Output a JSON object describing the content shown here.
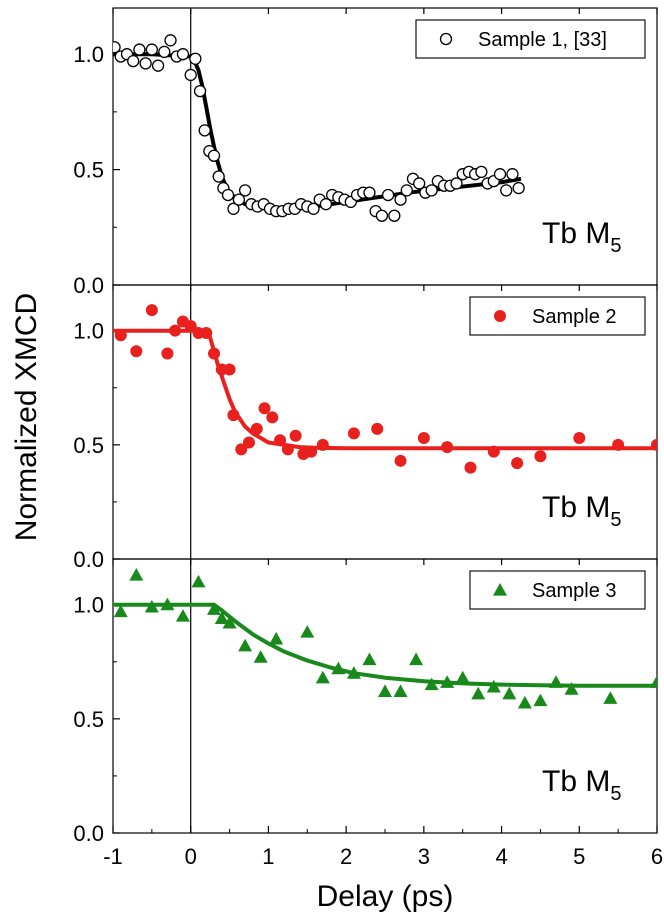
{
  "chart_data": {
    "type": "scatter",
    "xlabel": "Delay (ps)",
    "ylabel": "Normalized XMCD",
    "xlim": [
      -1,
      6
    ],
    "x_ticks": [
      -1,
      0,
      1,
      2,
      3,
      4,
      5,
      6
    ],
    "x_tick_labels": [
      "-1",
      "0",
      "1",
      "2",
      "3",
      "4",
      "5",
      "6"
    ],
    "vertical_line_x": 0,
    "panels": [
      {
        "ylim": [
          0,
          1.2
        ],
        "y_ticks": [
          0,
          0.5,
          1.0
        ],
        "y_tick_labels": [
          "0.0",
          "0.5",
          "1.0"
        ],
        "legend": "Sample 1, [33]",
        "legend_position": "top-right",
        "annotation_main": "Tb M",
        "annotation_sub": "5",
        "color": "#000000",
        "marker": "open-circle",
        "points": {
          "x": [
            -0.98,
            -0.9,
            -0.82,
            -0.74,
            -0.66,
            -0.58,
            -0.5,
            -0.42,
            -0.34,
            -0.26,
            -0.18,
            -0.1,
            0.0,
            0.06,
            0.12,
            0.18,
            0.24,
            0.3,
            0.36,
            0.42,
            0.48,
            0.55,
            0.62,
            0.7,
            0.78,
            0.86,
            0.94,
            1.02,
            1.1,
            1.18,
            1.26,
            1.34,
            1.42,
            1.5,
            1.58,
            1.66,
            1.74,
            1.82,
            1.9,
            1.98,
            2.06,
            2.14,
            2.22,
            2.3,
            2.38,
            2.46,
            2.54,
            2.62,
            2.7,
            2.78,
            2.86,
            2.94,
            3.02,
            3.1,
            3.18,
            3.26,
            3.34,
            3.42,
            3.5,
            3.58,
            3.66,
            3.74,
            3.82,
            3.9,
            3.98,
            4.06,
            4.14,
            4.22
          ],
          "y": [
            1.03,
            0.99,
            1.0,
            0.97,
            1.02,
            0.96,
            1.02,
            0.95,
            1.01,
            1.06,
            0.99,
            1.0,
            0.91,
            0.98,
            0.84,
            0.67,
            0.58,
            0.56,
            0.47,
            0.42,
            0.39,
            0.33,
            0.37,
            0.41,
            0.35,
            0.34,
            0.35,
            0.33,
            0.32,
            0.32,
            0.33,
            0.33,
            0.35,
            0.34,
            0.33,
            0.37,
            0.35,
            0.39,
            0.38,
            0.37,
            0.36,
            0.39,
            0.4,
            0.4,
            0.32,
            0.3,
            0.39,
            0.3,
            0.37,
            0.41,
            0.46,
            0.44,
            0.4,
            0.41,
            0.45,
            0.43,
            0.43,
            0.44,
            0.48,
            0.49,
            0.48,
            0.49,
            0.44,
            0.45,
            0.48,
            0.41,
            0.48,
            0.42
          ]
        },
        "fit": {
          "x": [
            -1.0,
            -0.5,
            0.0,
            0.05,
            0.1,
            0.15,
            0.2,
            0.25,
            0.3,
            0.35,
            0.4,
            0.45,
            0.5,
            0.6,
            0.7,
            0.8,
            0.9,
            1.0,
            1.1,
            1.2,
            1.4,
            1.6,
            1.8,
            2.0,
            2.4,
            2.8,
            3.2,
            3.6,
            4.0,
            4.25
          ],
          "y": [
            1.0,
            1.0,
            0.99,
            0.97,
            0.93,
            0.86,
            0.77,
            0.68,
            0.6,
            0.53,
            0.47,
            0.43,
            0.4,
            0.37,
            0.35,
            0.34,
            0.335,
            0.33,
            0.33,
            0.33,
            0.335,
            0.34,
            0.35,
            0.36,
            0.38,
            0.4,
            0.415,
            0.43,
            0.445,
            0.46
          ]
        }
      },
      {
        "ylim": [
          0,
          1.2
        ],
        "y_ticks": [
          0,
          0.5,
          1.0
        ],
        "y_tick_labels": [
          "0.0",
          "0.5",
          "1.0"
        ],
        "legend": "Sample 2",
        "legend_position": "top-right",
        "annotation_main": "Tb M",
        "annotation_sub": "5",
        "color": "#e8201e",
        "marker": "filled-circle",
        "points": {
          "x": [
            -0.9,
            -0.7,
            -0.5,
            -0.3,
            -0.2,
            -0.1,
            0.0,
            0.1,
            0.2,
            0.3,
            0.4,
            0.5,
            0.55,
            0.65,
            0.75,
            0.85,
            0.95,
            1.05,
            1.15,
            1.25,
            1.35,
            1.45,
            1.55,
            1.7,
            2.1,
            2.4,
            2.7,
            3.0,
            3.3,
            3.6,
            3.9,
            4.2,
            4.5,
            5.0,
            5.5,
            6.0
          ],
          "y": [
            0.98,
            0.91,
            1.09,
            0.9,
            1.0,
            1.04,
            1.02,
            0.99,
            0.99,
            0.9,
            0.83,
            0.83,
            0.63,
            0.48,
            0.51,
            0.57,
            0.66,
            0.62,
            0.52,
            0.48,
            0.54,
            0.46,
            0.47,
            0.5,
            0.55,
            0.57,
            0.43,
            0.53,
            0.49,
            0.4,
            0.47,
            0.42,
            0.45,
            0.53,
            0.5,
            0.5
          ]
        },
        "fit": {
          "x": [
            -1.0,
            -0.5,
            0.0,
            0.2,
            0.25,
            0.3,
            0.35,
            0.4,
            0.45,
            0.5,
            0.55,
            0.6,
            0.7,
            0.8,
            0.9,
            1.0,
            1.2,
            1.4,
            1.6,
            2.0,
            3.0,
            4.0,
            5.0,
            6.0
          ],
          "y": [
            1.0,
            1.0,
            1.0,
            1.0,
            0.97,
            0.91,
            0.85,
            0.8,
            0.75,
            0.7,
            0.66,
            0.63,
            0.58,
            0.55,
            0.53,
            0.51,
            0.5,
            0.49,
            0.487,
            0.485,
            0.485,
            0.485,
            0.485,
            0.485
          ]
        }
      },
      {
        "ylim": [
          0,
          1.2
        ],
        "y_ticks": [
          0,
          0.5,
          1.0
        ],
        "y_tick_labels": [
          "0.0",
          "0.5",
          "1.0"
        ],
        "legend": "Sample 3",
        "legend_position": "top-right",
        "annotation_main": "Tb M",
        "annotation_sub": "5",
        "color": "#18891a",
        "marker": "filled-triangle",
        "points": {
          "x": [
            -0.9,
            -0.7,
            -0.5,
            -0.3,
            -0.1,
            0.1,
            0.3,
            0.4,
            0.5,
            0.7,
            0.9,
            1.1,
            1.5,
            1.7,
            1.9,
            2.1,
            2.3,
            2.5,
            2.7,
            2.9,
            3.1,
            3.3,
            3.5,
            3.7,
            3.9,
            4.1,
            4.3,
            4.5,
            4.7,
            4.9,
            5.4,
            6.0
          ],
          "y": [
            0.97,
            1.13,
            0.99,
            1.0,
            0.95,
            1.1,
            0.98,
            0.94,
            0.92,
            0.82,
            0.77,
            0.85,
            0.88,
            0.68,
            0.72,
            0.7,
            0.76,
            0.62,
            0.62,
            0.76,
            0.65,
            0.66,
            0.68,
            0.61,
            0.64,
            0.61,
            0.57,
            0.58,
            0.66,
            0.63,
            0.59,
            0.66
          ]
        },
        "fit": {
          "x": [
            -1.0,
            -0.5,
            0.0,
            0.3,
            0.4,
            0.6,
            0.8,
            1.0,
            1.2,
            1.5,
            1.8,
            2.1,
            2.5,
            3.0,
            3.5,
            4.0,
            4.5,
            5.0,
            5.5,
            6.0
          ],
          "y": [
            1.0,
            1.0,
            1.0,
            1.0,
            0.975,
            0.92,
            0.87,
            0.83,
            0.795,
            0.755,
            0.725,
            0.7,
            0.68,
            0.665,
            0.655,
            0.65,
            0.647,
            0.645,
            0.645,
            0.645
          ]
        }
      }
    ]
  }
}
